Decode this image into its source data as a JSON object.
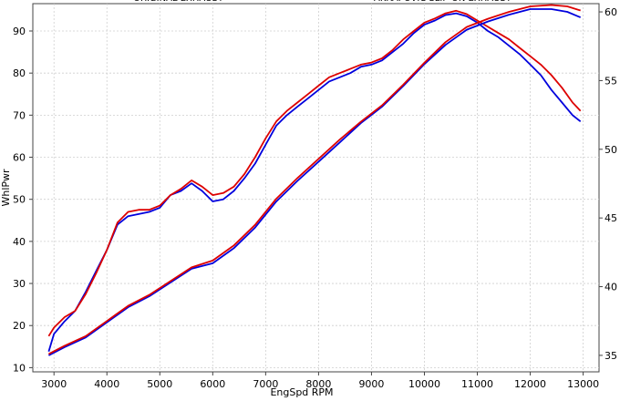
{
  "chart_data": {
    "type": "line",
    "xlabel": "EngSpd  RPM",
    "ylabel": "WhlPwr",
    "x_ticks": [
      3000,
      4000,
      5000,
      6000,
      7000,
      8000,
      9000,
      10000,
      11000,
      12000,
      13000
    ],
    "y_ticks": [
      10,
      20,
      30,
      40,
      50,
      60,
      70,
      80,
      90
    ],
    "y2_ticks": [
      35,
      40,
      45,
      50,
      55,
      60
    ],
    "xlim": [
      2600,
      13300
    ],
    "ylim": [
      9,
      96.5
    ],
    "y2lim": [
      33.8,
      60.6
    ],
    "grid": true,
    "legend": [
      {
        "label": "ORIGINAL EXHAUST",
        "color": "#0000dd"
      },
      {
        "label": "AKRAPOVIC SLIP-ON EXHAUST",
        "color": "#dd0000"
      }
    ],
    "series": [
      {
        "axis": "left",
        "color": "#0000dd",
        "points": [
          [
            2900,
            13.8
          ],
          [
            3000,
            18
          ],
          [
            3200,
            21
          ],
          [
            3400,
            23.5
          ],
          [
            3600,
            28
          ],
          [
            3800,
            33
          ],
          [
            4000,
            38
          ],
          [
            4200,
            44
          ],
          [
            4400,
            46
          ],
          [
            4600,
            46.5
          ],
          [
            4800,
            47
          ],
          [
            5000,
            48
          ],
          [
            5200,
            51
          ],
          [
            5400,
            52
          ],
          [
            5600,
            53.8
          ],
          [
            5800,
            52
          ],
          [
            6000,
            49.5
          ],
          [
            6200,
            50
          ],
          [
            6400,
            52
          ],
          [
            6600,
            55
          ],
          [
            6800,
            58.5
          ],
          [
            7000,
            63
          ],
          [
            7200,
            67.5
          ],
          [
            7400,
            70
          ],
          [
            7600,
            72
          ],
          [
            7800,
            74
          ],
          [
            8000,
            76
          ],
          [
            8200,
            78
          ],
          [
            8400,
            79
          ],
          [
            8600,
            80
          ],
          [
            8800,
            81.5
          ],
          [
            9000,
            82
          ],
          [
            9200,
            83
          ],
          [
            9400,
            85
          ],
          [
            9600,
            87
          ],
          [
            9800,
            89.5
          ],
          [
            10000,
            91.5
          ],
          [
            10200,
            92.5
          ],
          [
            10400,
            93.8
          ],
          [
            10600,
            94.2
          ],
          [
            10800,
            93.5
          ],
          [
            11000,
            92
          ],
          [
            11200,
            90
          ],
          [
            11400,
            88.5
          ],
          [
            11600,
            86.5
          ],
          [
            11800,
            84.5
          ],
          [
            12000,
            82
          ],
          [
            12200,
            79.5
          ],
          [
            12400,
            76
          ],
          [
            12600,
            73
          ],
          [
            12800,
            70
          ],
          [
            12950,
            68.5
          ]
        ]
      },
      {
        "axis": "left",
        "color": "#dd0000",
        "points": [
          [
            2900,
            17.5
          ],
          [
            3000,
            19.5
          ],
          [
            3200,
            22
          ],
          [
            3400,
            23.5
          ],
          [
            3600,
            27.5
          ],
          [
            3800,
            32.5
          ],
          [
            4000,
            38
          ],
          [
            4200,
            44.5
          ],
          [
            4400,
            47
          ],
          [
            4600,
            47.5
          ],
          [
            4800,
            47.5
          ],
          [
            5000,
            48.5
          ],
          [
            5200,
            51
          ],
          [
            5400,
            52.5
          ],
          [
            5600,
            54.5
          ],
          [
            5800,
            53
          ],
          [
            6000,
            51
          ],
          [
            6200,
            51.5
          ],
          [
            6400,
            53
          ],
          [
            6600,
            56
          ],
          [
            6800,
            60
          ],
          [
            7000,
            64.5
          ],
          [
            7200,
            68.5
          ],
          [
            7400,
            71
          ],
          [
            7600,
            73
          ],
          [
            7800,
            75
          ],
          [
            8000,
            77
          ],
          [
            8200,
            79
          ],
          [
            8400,
            80
          ],
          [
            8600,
            81
          ],
          [
            8800,
            82
          ],
          [
            9000,
            82.5
          ],
          [
            9200,
            83.5
          ],
          [
            9400,
            85.5
          ],
          [
            9600,
            88
          ],
          [
            9800,
            90
          ],
          [
            10000,
            92
          ],
          [
            10200,
            93
          ],
          [
            10400,
            94.2
          ],
          [
            10600,
            94.8
          ],
          [
            10800,
            94
          ],
          [
            11000,
            92.5
          ],
          [
            11200,
            91
          ],
          [
            11400,
            89.5
          ],
          [
            11600,
            88
          ],
          [
            11800,
            86
          ],
          [
            12000,
            84
          ],
          [
            12200,
            82
          ],
          [
            12400,
            79.5
          ],
          [
            12600,
            76.5
          ],
          [
            12800,
            73
          ],
          [
            12950,
            71
          ]
        ]
      },
      {
        "axis": "right",
        "color": "#0000dd",
        "points": [
          [
            2900,
            35
          ],
          [
            3200,
            35.6
          ],
          [
            3600,
            36.3
          ],
          [
            4000,
            37.4
          ],
          [
            4400,
            38.5
          ],
          [
            4800,
            39.3
          ],
          [
            5200,
            40.3
          ],
          [
            5600,
            41.3
          ],
          [
            6000,
            41.7
          ],
          [
            6400,
            42.8
          ],
          [
            6800,
            44.3
          ],
          [
            7200,
            46.2
          ],
          [
            7600,
            47.7
          ],
          [
            8000,
            49.1
          ],
          [
            8400,
            50.5
          ],
          [
            8800,
            51.9
          ],
          [
            9200,
            53.1
          ],
          [
            9600,
            54.6
          ],
          [
            10000,
            56.2
          ],
          [
            10400,
            57.6
          ],
          [
            10800,
            58.7
          ],
          [
            11200,
            59.3
          ],
          [
            11600,
            59.8
          ],
          [
            12000,
            60.2
          ],
          [
            12400,
            60.2
          ],
          [
            12700,
            60
          ],
          [
            12950,
            59.6
          ]
        ]
      },
      {
        "axis": "right",
        "color": "#dd0000",
        "points": [
          [
            2900,
            35.1
          ],
          [
            3200,
            35.7
          ],
          [
            3600,
            36.4
          ],
          [
            4000,
            37.5
          ],
          [
            4400,
            38.6
          ],
          [
            4800,
            39.4
          ],
          [
            5200,
            40.4
          ],
          [
            5600,
            41.4
          ],
          [
            6000,
            41.9
          ],
          [
            6400,
            43
          ],
          [
            6800,
            44.5
          ],
          [
            7200,
            46.4
          ],
          [
            7600,
            47.9
          ],
          [
            8000,
            49.3
          ],
          [
            8400,
            50.7
          ],
          [
            8800,
            52
          ],
          [
            9200,
            53.2
          ],
          [
            9600,
            54.7
          ],
          [
            10000,
            56.3
          ],
          [
            10400,
            57.8
          ],
          [
            10800,
            58.9
          ],
          [
            11200,
            59.5
          ],
          [
            11600,
            60
          ],
          [
            12000,
            60.4
          ],
          [
            12400,
            60.5
          ],
          [
            12700,
            60.4
          ],
          [
            12950,
            60.1
          ]
        ]
      }
    ]
  }
}
